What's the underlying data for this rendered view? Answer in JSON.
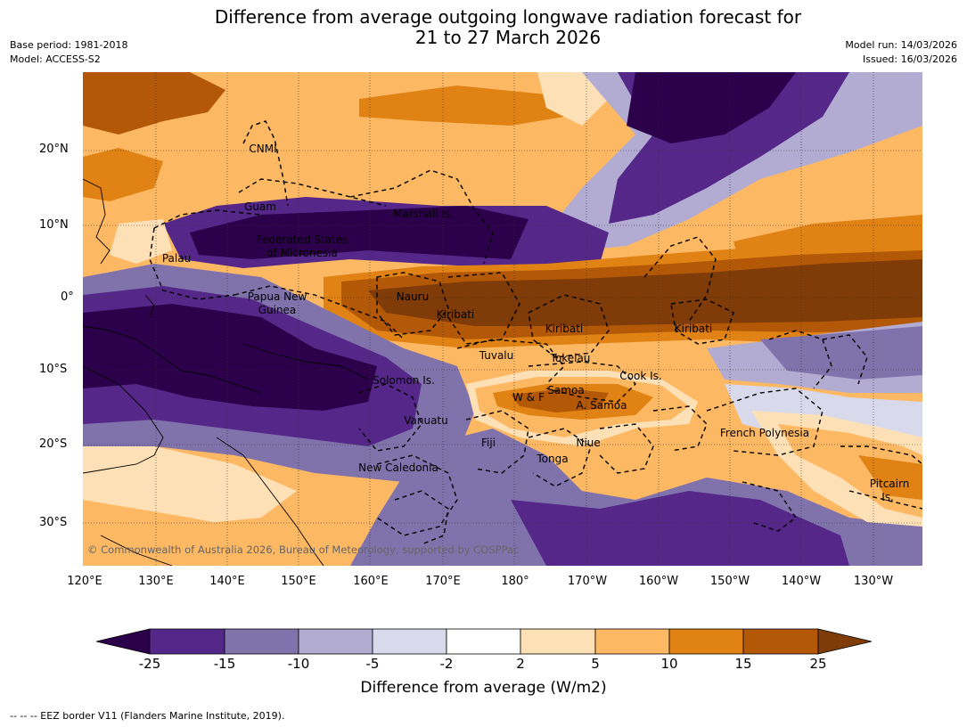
{
  "header": {
    "title_line1": "Difference from average outgoing longwave radiation forecast for",
    "title_line2": "21 to 27 March 2026",
    "base_period": "Base period: 1981-2018",
    "model": "Model: ACCESS-S2",
    "model_run": "Model run: 14/03/2026",
    "issued": "Issued: 16/03/2026"
  },
  "map": {
    "lat_labels": [
      "20°N",
      "10°N",
      "0°",
      "10°S",
      "20°S",
      "30°S"
    ],
    "lon_labels": [
      "120°E",
      "130°E",
      "140°E",
      "150°E",
      "160°E",
      "170°E",
      "180°",
      "170°W",
      "160°W",
      "150°W",
      "140°W",
      "130°W"
    ],
    "places": {
      "cnmi": "CNMI",
      "guam": "Guam",
      "marshall": "Marshall Is.",
      "fsm1": "Federated States",
      "fsm2": "of Micronesia",
      "palau": "Palau",
      "png1": "Papua New",
      "png2": "Guinea",
      "nauru": "Nauru",
      "kiribati_w": "Kiribati",
      "kiribati_c": "Kiribati",
      "kiribati_e": "Kiribati",
      "tuvalu": "Tuvalu",
      "tokelau": "Tokelau",
      "cook": "Cook Is.",
      "solomon": "Solomon Is.",
      "samoa": "Samoa",
      "wf": "W & F",
      "asamoa": "A. Samoa",
      "vanuatu": "Vanuatu",
      "fiji": "Fiji",
      "niue": "Niue",
      "tonga": "Tonga",
      "fpoly": "French Polynesia",
      "newcal": "New Caledonia",
      "pitcairn1": "Pitcairn",
      "pitcairn2": "Is."
    },
    "copyright": "© Commonwealth of Australia 2026, Bureau of Meteorology, supported by COSPPac"
  },
  "colorbar": {
    "ticks": [
      "-25",
      "-15",
      "-10",
      "-5",
      "-2",
      "2",
      "5",
      "10",
      "15",
      "25"
    ],
    "label": "Difference from average (W/m2)",
    "colors": [
      "#2d004b",
      "#542788",
      "#8073ac",
      "#b2abd2",
      "#d8daeb",
      "#ffffff",
      "#fee0b6",
      "#fdb863",
      "#e08214",
      "#b35806",
      "#7f3b08"
    ]
  },
  "footer": {
    "legend": "--  --  -- EEZ border V11 (Flanders Marine Institute, 2019)."
  }
}
